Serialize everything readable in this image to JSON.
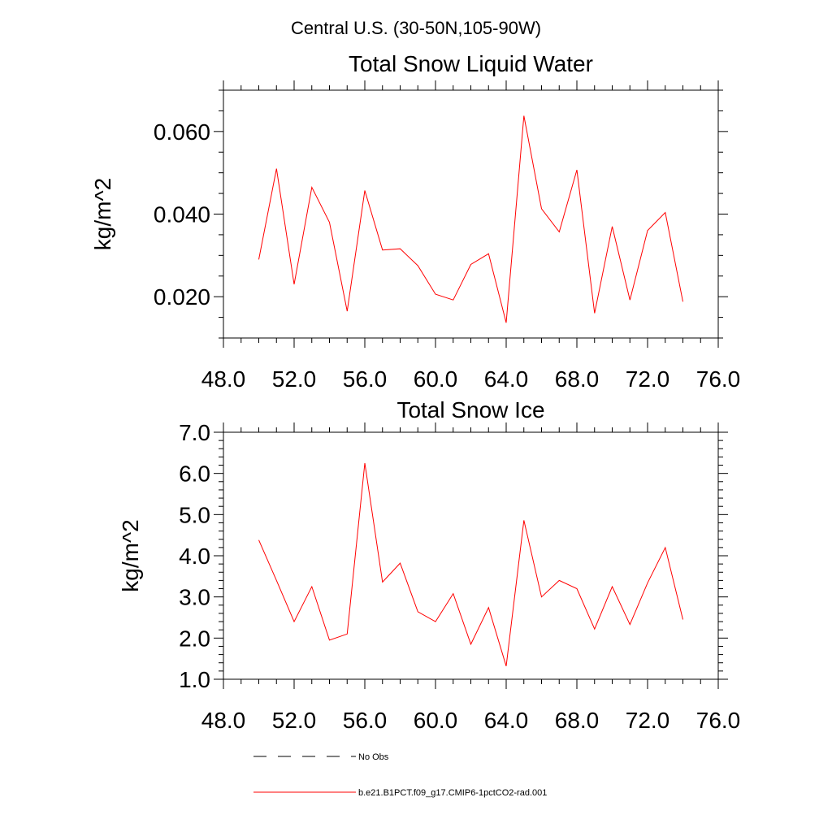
{
  "page_title": "Central U.S. (30-50N,105-90W)",
  "colors": {
    "model": "#ff0000",
    "obs": "#000000"
  },
  "legend": {
    "obs_label": "No Obs",
    "model_label": "b.e21.B1PCT.f09_g17.CMIP6-1pctCO2-rad.001"
  },
  "chart_data": [
    {
      "type": "line",
      "title": "Total Snow Liquid Water",
      "ylabel": "kg/m^2",
      "xlabel": "",
      "xlim": [
        48,
        76
      ],
      "ylim": [
        0.01,
        0.07
      ],
      "xticks": [
        48,
        52,
        56,
        60,
        64,
        68,
        72,
        76
      ],
      "xtick_labels": [
        "48.0",
        "52.0",
        "56.0",
        "60.0",
        "64.0",
        "68.0",
        "72.0",
        "76.0"
      ],
      "yticks": [
        0.02,
        0.04,
        0.06
      ],
      "ytick_labels": [
        "0.020",
        "0.040",
        "0.060"
      ],
      "yminor_step": 0.005,
      "xminor_step": 1,
      "series": [
        {
          "name": "b.e21.B1PCT.f09_g17.CMIP6-1pctCO2-rad.001",
          "x": [
            50,
            51,
            52,
            53,
            54,
            55,
            56,
            57,
            58,
            59,
            60,
            61,
            62,
            63,
            64,
            65,
            66,
            67,
            68,
            69,
            70,
            71,
            72,
            73,
            74
          ],
          "y": [
            0.029,
            0.051,
            0.023,
            0.0465,
            0.038,
            0.0165,
            0.0457,
            0.0313,
            0.0316,
            0.0275,
            0.0206,
            0.0192,
            0.0278,
            0.0304,
            0.0137,
            0.0638,
            0.0413,
            0.0357,
            0.0507,
            0.016,
            0.037,
            0.0192,
            0.036,
            0.0404,
            0.0188
          ]
        }
      ]
    },
    {
      "type": "line",
      "title": "Total Snow Ice",
      "ylabel": "kg/m^2",
      "xlabel": "",
      "xlim": [
        48,
        76
      ],
      "ylim": [
        1.0,
        7.0
      ],
      "xticks": [
        48,
        52,
        56,
        60,
        64,
        68,
        72,
        76
      ],
      "xtick_labels": [
        "48.0",
        "52.0",
        "56.0",
        "60.0",
        "64.0",
        "68.0",
        "72.0",
        "76.0"
      ],
      "yticks": [
        1,
        2,
        3,
        4,
        5,
        6,
        7
      ],
      "ytick_labels": [
        "1.0",
        "2.0",
        "3.0",
        "4.0",
        "5.0",
        "6.0",
        "7.0"
      ],
      "yminor_step": 0.2,
      "xminor_step": 1,
      "series": [
        {
          "name": "b.e21.B1PCT.f09_g17.CMIP6-1pctCO2-rad.001",
          "x": [
            50,
            51,
            52,
            53,
            54,
            55,
            56,
            57,
            58,
            59,
            60,
            61,
            62,
            63,
            64,
            65,
            66,
            67,
            68,
            69,
            70,
            71,
            72,
            73,
            74
          ],
          "y": [
            4.38,
            3.4,
            2.4,
            3.25,
            1.95,
            2.1,
            6.25,
            3.36,
            3.82,
            2.64,
            2.4,
            3.08,
            1.85,
            2.74,
            1.32,
            4.86,
            3.0,
            3.4,
            3.2,
            2.22,
            3.25,
            2.33,
            3.34,
            4.2,
            2.45
          ]
        }
      ]
    }
  ]
}
